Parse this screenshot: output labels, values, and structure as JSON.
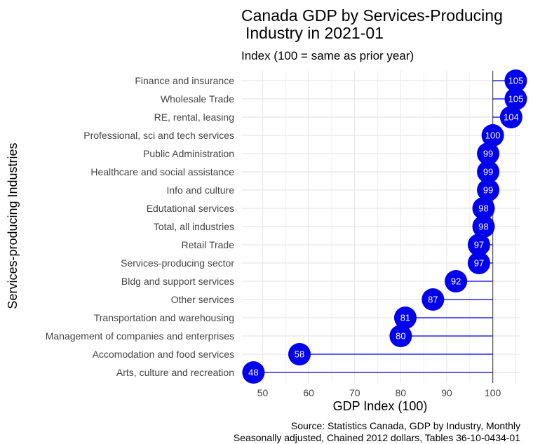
{
  "chart_data": {
    "type": "lollipop",
    "title_line1": "Canada GDP by Services-Producing",
    "title_line2": "Industry in 2021-01",
    "subtitle": "Index (100 = same as prior year)",
    "xlabel": "GDP Index (100)",
    "ylabel": "Services-producing Industries",
    "caption_line1": "Source: Statistics Canada, GDP by Industry, Monthly",
    "caption_line2": "Seasonally adjusted, Chained 2012 dollars, Tables 36-10-0434-01",
    "xlim": [
      45.5,
      106
    ],
    "xticks": [
      50,
      60,
      70,
      80,
      90,
      100
    ],
    "baseline": 100,
    "colors": {
      "point": "#0000ee",
      "line": "#0000ee",
      "baseline": "#555555",
      "grid": "#ebebeb",
      "label": "#ffffff"
    },
    "grid": true,
    "categories": [
      "Finance and insurance",
      "Wholesale Trade",
      "RE, rental, leasing",
      "Professional, sci and tech services",
      "Public Administration",
      "Healthcare and social assistance",
      "Info and culture",
      "Edutational services",
      "Total, all industries",
      "Retail Trade",
      "Services-producing sector",
      "Bldg and support services",
      "Other services",
      "Transportation and warehousing",
      "Management of companies and enterprises",
      "Accomodation and food services",
      "Arts, culture and recreation"
    ],
    "values": [
      105,
      105,
      104,
      100,
      99,
      99,
      99,
      98,
      98,
      97,
      97,
      92,
      87,
      81,
      80,
      58,
      48
    ],
    "value_labels": [
      "105",
      "105",
      "104",
      "100",
      "99",
      "99",
      "99",
      "98",
      "98",
      "97",
      "97",
      "92",
      "87",
      "81",
      "80",
      "58",
      "48"
    ]
  }
}
